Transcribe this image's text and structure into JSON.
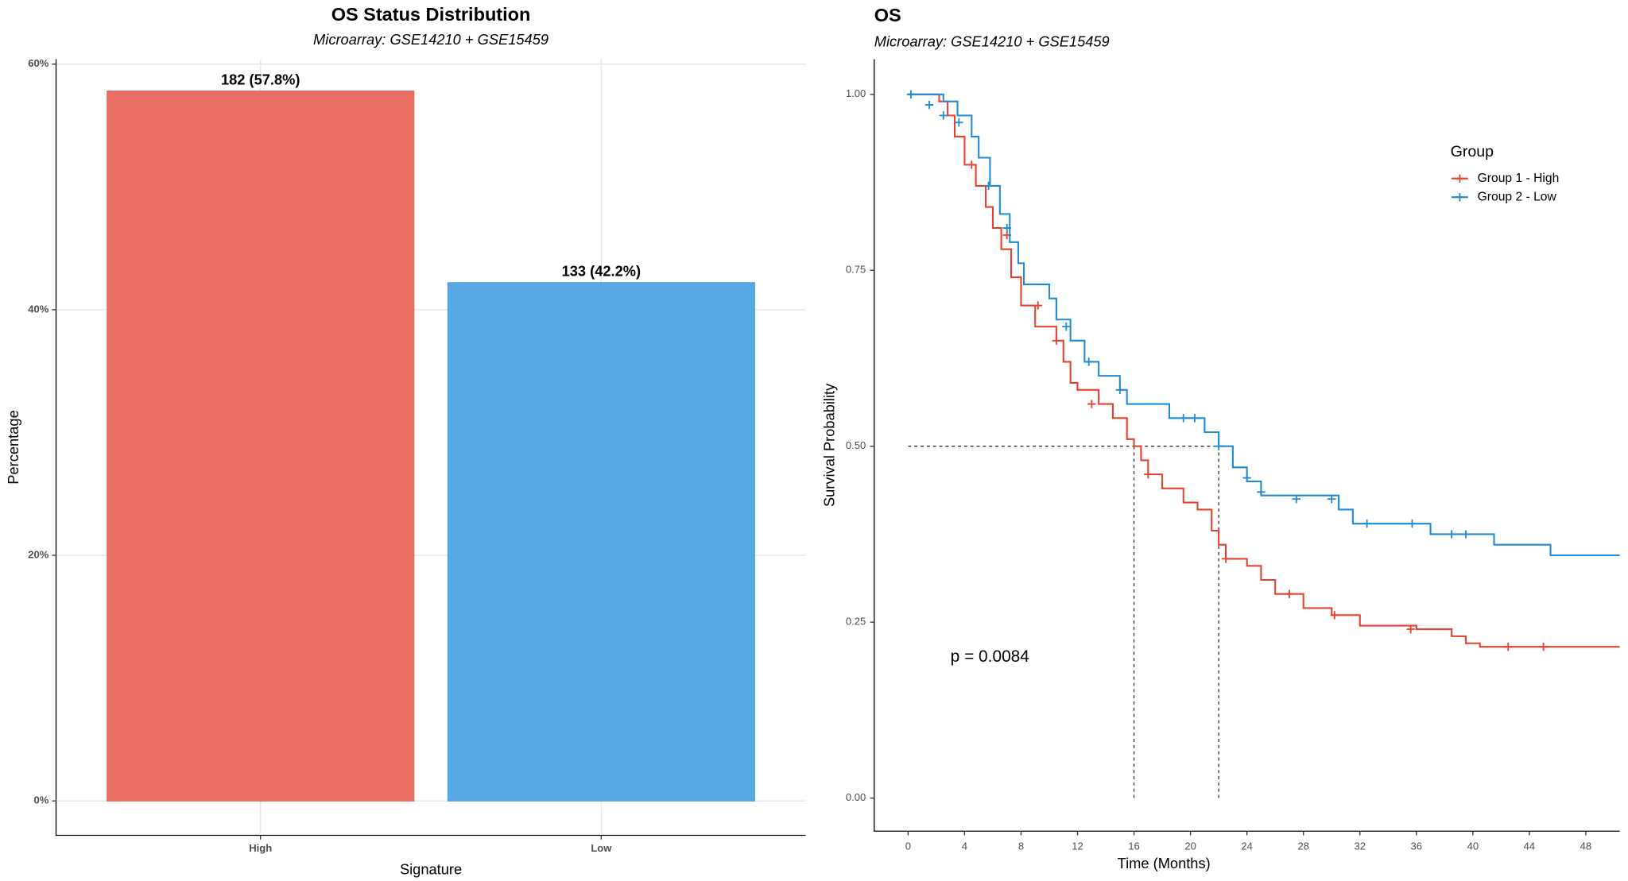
{
  "chart_data": [
    {
      "type": "bar",
      "title": "OS Status Distribution",
      "subtitle": "Microarray: GSE14210 + GSE15459",
      "x_label": "Signature",
      "y_label": "Percentage",
      "categories": [
        "High",
        "Low"
      ],
      "values": [
        57.8,
        42.2
      ],
      "value_labels": [
        "182 (57.8%)",
        "133 (42.2%)"
      ],
      "colors": [
        "#e8675d",
        "#4fa3e0"
      ],
      "ylim": [
        -2.8,
        60.4
      ],
      "yticks": [
        {
          "value": 0,
          "label": "0%"
        },
        {
          "value": 20,
          "label": "20%"
        },
        {
          "value": 40,
          "label": "40%"
        },
        {
          "value": 60,
          "label": "60%"
        }
      ],
      "grid": true
    },
    {
      "type": "step",
      "title": "OS",
      "subtitle": "Microarray: GSE14210 + GSE15459",
      "x_label": "Time (Months)",
      "y_label": "Survival Probability",
      "legend_title": "Group",
      "annotation": "p = 0.0084",
      "annotation_x": 3,
      "annotation_y": 0.2,
      "median_x": [
        16,
        22
      ],
      "median_y": 0.5,
      "xlim": [
        -2.4,
        50.4
      ],
      "ylim": [
        -0.047,
        1.05
      ],
      "xticks": [
        0,
        4,
        8,
        12,
        16,
        20,
        24,
        28,
        32,
        36,
        40,
        44,
        48
      ],
      "yticks": [
        {
          "value": 0,
          "label": "0.00"
        },
        {
          "value": 0.25,
          "label": "0.25"
        },
        {
          "value": 0.5,
          "label": "0.50"
        },
        {
          "value": 0.75,
          "label": "0.75"
        },
        {
          "value": 1,
          "label": "1.00"
        }
      ],
      "series": [
        {
          "name": "Group 1 - High",
          "color": "#e8402f",
          "x": [
            0,
            2.2,
            2.8,
            3.3,
            4,
            4.8,
            5.5,
            6,
            6.6,
            7.3,
            8,
            9,
            10.5,
            11,
            11.5,
            12,
            13.5,
            14.5,
            15.5,
            16,
            16.5,
            17,
            18,
            19.5,
            20.5,
            21.5,
            22,
            22.5,
            24,
            25,
            26,
            28,
            30,
            32,
            36,
            38.5,
            39.5,
            40.5,
            50.4
          ],
          "values": [
            1,
            0.99,
            0.97,
            0.94,
            0.9,
            0.87,
            0.84,
            0.81,
            0.78,
            0.74,
            0.7,
            0.67,
            0.65,
            0.62,
            0.59,
            0.58,
            0.56,
            0.54,
            0.51,
            0.5,
            0.48,
            0.46,
            0.44,
            0.42,
            0.41,
            0.38,
            0.36,
            0.34,
            0.33,
            0.31,
            0.29,
            0.27,
            0.26,
            0.245,
            0.24,
            0.23,
            0.22,
            0.215,
            0.215
          ],
          "censor_x": [
            4.5,
            7,
            9.2,
            10.5,
            13,
            17,
            22.5,
            27,
            30.2,
            35.6,
            42.5,
            45
          ],
          "censor_y": [
            0.9,
            0.8,
            0.7,
            0.65,
            0.56,
            0.46,
            0.34,
            0.29,
            0.26,
            0.24,
            0.215,
            0.215
          ]
        },
        {
          "name": "Group 2 - Low",
          "color": "#1f8ad6",
          "x": [
            0,
            2.5,
            3.5,
            4.5,
            5,
            5.8,
            6.5,
            7.2,
            7.8,
            8.2,
            10,
            10.5,
            11.5,
            12.5,
            13.5,
            15,
            15.5,
            18.5,
            21,
            22,
            23,
            24,
            25,
            30.5,
            31.5,
            37,
            41.5,
            45.5,
            50.4
          ],
          "values": [
            1,
            0.99,
            0.97,
            0.94,
            0.91,
            0.87,
            0.83,
            0.79,
            0.76,
            0.73,
            0.71,
            0.68,
            0.65,
            0.62,
            0.6,
            0.58,
            0.56,
            0.54,
            0.52,
            0.5,
            0.47,
            0.45,
            0.43,
            0.41,
            0.39,
            0.375,
            0.36,
            0.345,
            0.345
          ],
          "censor_x": [
            0.2,
            1.5,
            2.5,
            3.6,
            5.7,
            7,
            11.2,
            12.8,
            15,
            19.5,
            20.3,
            22,
            24,
            25,
            27.5,
            30,
            32.5,
            35.7,
            38.5,
            39.5
          ],
          "censor_y": [
            1,
            0.985,
            0.97,
            0.96,
            0.87,
            0.81,
            0.67,
            0.62,
            0.58,
            0.54,
            0.54,
            0.5,
            0.455,
            0.435,
            0.425,
            0.425,
            0.39,
            0.39,
            0.375,
            0.375
          ]
        }
      ]
    }
  ]
}
